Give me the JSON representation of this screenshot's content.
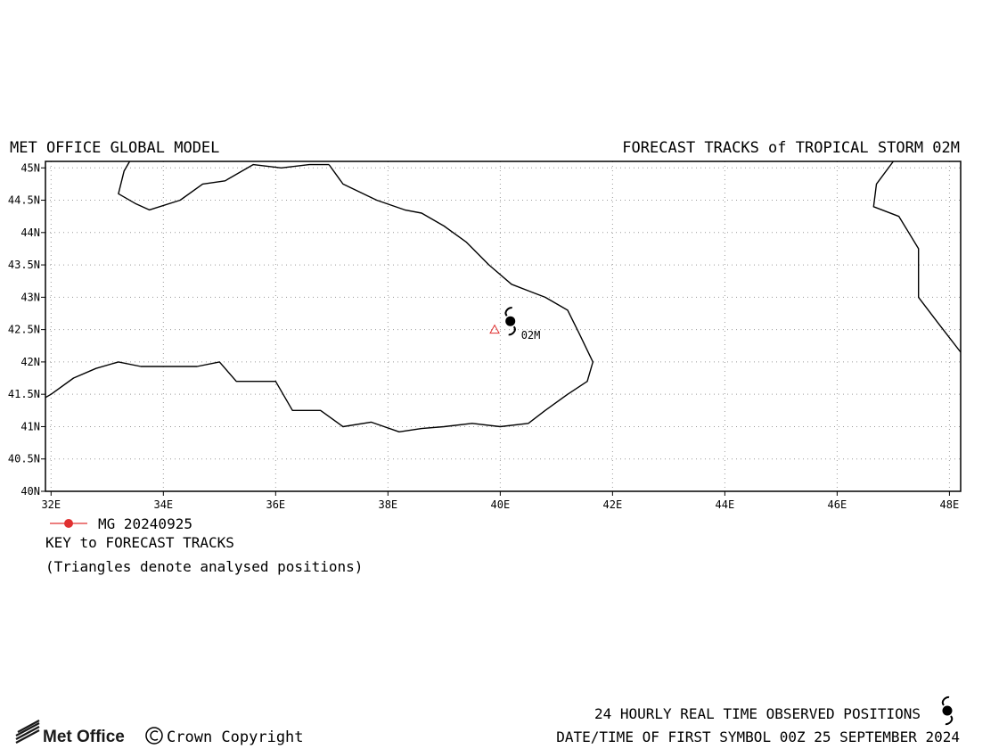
{
  "header": {
    "left_title": "MET OFFICE GLOBAL MODEL",
    "right_title": "FORECAST TRACKS of TROPICAL STORM 02M"
  },
  "map": {
    "lon_range": [
      31.9,
      48.2
    ],
    "lat_range": [
      40.0,
      45.1
    ],
    "grid": "dotted",
    "lon_ticks": [
      {
        "value": 32,
        "label": "32E"
      },
      {
        "value": 34,
        "label": "34E"
      },
      {
        "value": 36,
        "label": "36E"
      },
      {
        "value": 38,
        "label": "38E"
      },
      {
        "value": 40,
        "label": "40E"
      },
      {
        "value": 42,
        "label": "42E"
      },
      {
        "value": 44,
        "label": "44E"
      },
      {
        "value": 46,
        "label": "46E"
      },
      {
        "value": 48,
        "label": "48E"
      }
    ],
    "lat_ticks": [
      {
        "value": 40.0,
        "label": "40N"
      },
      {
        "value": 40.5,
        "label": "40.5N"
      },
      {
        "value": 41.0,
        "label": "41N"
      },
      {
        "value": 41.5,
        "label": "41.5N"
      },
      {
        "value": 42.0,
        "label": "42N"
      },
      {
        "value": 42.5,
        "label": "42.5N"
      },
      {
        "value": 43.0,
        "label": "43N"
      },
      {
        "value": 43.5,
        "label": "43.5N"
      },
      {
        "value": 44.0,
        "label": "44N"
      },
      {
        "value": 44.5,
        "label": "44.5N"
      },
      {
        "value": 45.0,
        "label": "45N"
      }
    ],
    "coastlines": [
      [
        [
          33.4,
          45.1
        ],
        [
          33.3,
          44.95
        ],
        [
          33.2,
          44.6
        ],
        [
          33.5,
          44.45
        ],
        [
          33.75,
          44.35
        ],
        [
          34.3,
          44.5
        ],
        [
          34.7,
          44.75
        ],
        [
          35.1,
          44.8
        ],
        [
          35.6,
          45.05
        ],
        [
          36.1,
          45.0
        ],
        [
          36.6,
          45.05
        ],
        [
          36.95,
          45.05
        ]
      ],
      [
        [
          36.95,
          45.05
        ],
        [
          37.2,
          44.75
        ],
        [
          37.8,
          44.5
        ],
        [
          38.3,
          44.35
        ],
        [
          38.6,
          44.3
        ],
        [
          39.0,
          44.1
        ],
        [
          39.4,
          43.85
        ],
        [
          39.8,
          43.5
        ],
        [
          40.2,
          43.2
        ],
        [
          40.5,
          43.1
        ],
        [
          40.8,
          43.0
        ],
        [
          41.2,
          42.8
        ],
        [
          41.4,
          42.45
        ],
        [
          41.65,
          42.0
        ],
        [
          41.55,
          41.7
        ],
        [
          41.2,
          41.5
        ],
        [
          40.8,
          41.25
        ],
        [
          40.5,
          41.05
        ],
        [
          40.0,
          41.0
        ],
        [
          39.5,
          41.05
        ],
        [
          39.0,
          41.0
        ],
        [
          38.6,
          40.97
        ],
        [
          38.2,
          40.92
        ],
        [
          37.7,
          41.07
        ],
        [
          37.2,
          41.0
        ],
        [
          36.8,
          41.25
        ],
        [
          36.3,
          41.25
        ],
        [
          36.0,
          41.7
        ],
        [
          35.3,
          41.7
        ],
        [
          35.0,
          42.0
        ],
        [
          34.6,
          41.93
        ],
        [
          34.0,
          41.93
        ],
        [
          33.6,
          41.93
        ],
        [
          33.2,
          42.0
        ],
        [
          32.8,
          41.9
        ],
        [
          32.4,
          41.75
        ],
        [
          32.0,
          41.5
        ],
        [
          31.9,
          41.45
        ]
      ],
      [
        [
          47.0,
          45.1
        ],
        [
          46.7,
          44.75
        ],
        [
          46.65,
          44.4
        ],
        [
          47.1,
          44.25
        ],
        [
          47.45,
          43.75
        ],
        [
          47.45,
          43.0
        ],
        [
          47.8,
          42.6
        ],
        [
          48.2,
          42.15
        ]
      ]
    ]
  },
  "storm": {
    "label": "02M",
    "current_position": {
      "lon": 40.18,
      "lat": 42.63
    },
    "analysed_positions": [
      {
        "lon": 39.9,
        "lat": 42.5
      }
    ],
    "triangle_color": "#e03030"
  },
  "key": {
    "track_label": "MG 20240925",
    "track_color": "#e03030",
    "title": "KEY to FORECAST TRACKS",
    "note": "(Triangles denote analysed positions)"
  },
  "footer": {
    "logo_text": "Met Office",
    "copyright": "Crown Copyright",
    "observed_label": "24 HOURLY REAL TIME OBSERVED POSITIONS",
    "first_symbol_label": "DATE/TIME OF FIRST SYMBOL 00Z 25 SEPTEMBER 2024"
  }
}
